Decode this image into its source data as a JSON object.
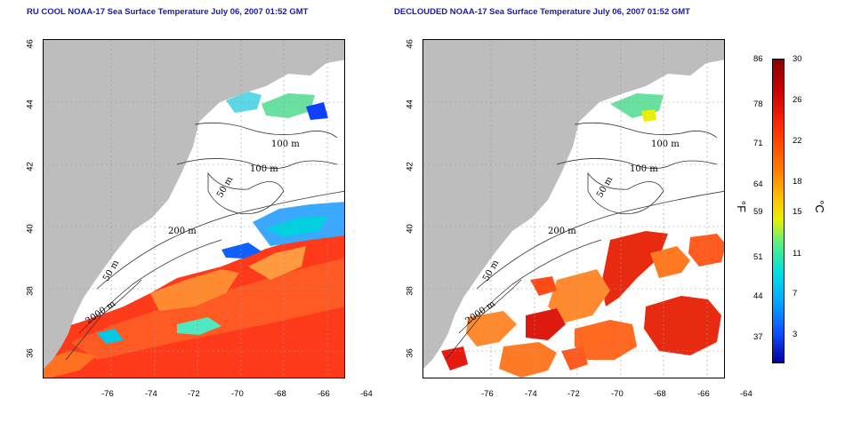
{
  "titles": {
    "left": "RU COOL NOAA-17 Sea Surface Temperature July 06, 2007 01:52 GMT",
    "right": "DECLOUDED NOAA-17 Sea Surface Temperature July 06, 2007 01:52 GMT"
  },
  "axes": {
    "lat_ticks": [
      "46",
      "44",
      "42",
      "40",
      "38",
      "36"
    ],
    "lon_ticks": [
      "-76",
      "-74",
      "-72",
      "-70",
      "-68",
      "-66",
      "-64"
    ]
  },
  "contours": {
    "label_100_a": "100 m",
    "label_100_b": "100 m",
    "label_50": "50 m",
    "label_200": "200 m",
    "label_50_south": "50 m",
    "label_2000": "2000 m"
  },
  "colorbar": {
    "fahrenheit_unit": "°F",
    "celsius_unit": "°C",
    "fahrenheit_ticks": [
      "86",
      "78",
      "71",
      "64",
      "59",
      "51",
      "44",
      "37"
    ],
    "celsius_ticks": [
      "30",
      "26",
      "22",
      "18",
      "15",
      "11",
      "7",
      "3"
    ],
    "colors": {
      "hot": "#c80000",
      "warm": "#ff7a00",
      "mid": "#e8f000",
      "cool": "#00e0e0",
      "cold": "#0000a0",
      "land": "#bdbdbd",
      "title": "#1a1aa8"
    }
  }
}
